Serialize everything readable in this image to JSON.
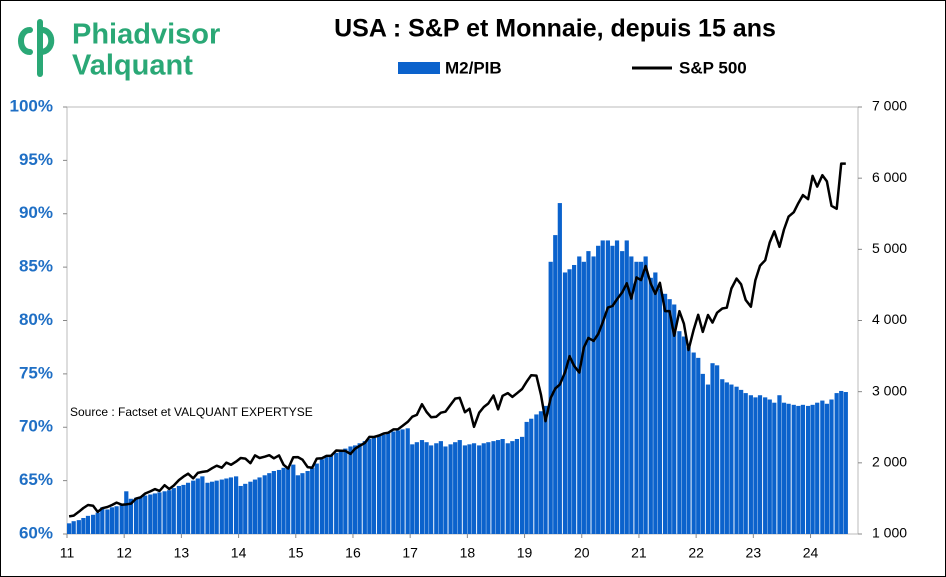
{
  "logo": {
    "line1": "Phiadvisor",
    "line2": "Valquant"
  },
  "chart_data": {
    "type": "combo",
    "title": "USA : S&P et Monnaie, depuis 15 ans",
    "annotation": "Source : Factset et VALQUANT EXPERTYSE",
    "x": [
      11.0,
      11.08,
      11.17,
      11.25,
      11.33,
      11.42,
      11.5,
      11.58,
      11.67,
      11.75,
      11.83,
      11.92,
      12.0,
      12.08,
      12.17,
      12.25,
      12.33,
      12.42,
      12.5,
      12.58,
      12.67,
      12.75,
      12.83,
      12.92,
      13.0,
      13.08,
      13.17,
      13.25,
      13.33,
      13.42,
      13.5,
      13.58,
      13.67,
      13.75,
      13.83,
      13.92,
      14.0,
      14.08,
      14.17,
      14.25,
      14.33,
      14.42,
      14.5,
      14.58,
      14.67,
      14.75,
      14.83,
      14.92,
      15.0,
      15.08,
      15.17,
      15.25,
      15.33,
      15.42,
      15.5,
      15.58,
      15.67,
      15.75,
      15.83,
      15.92,
      16.0,
      16.08,
      16.17,
      16.25,
      16.33,
      16.42,
      16.5,
      16.58,
      16.67,
      16.75,
      16.83,
      16.92,
      17.0,
      17.08,
      17.17,
      17.25,
      17.33,
      17.42,
      17.5,
      17.58,
      17.67,
      17.75,
      17.83,
      17.92,
      18.0,
      18.08,
      18.17,
      18.25,
      18.33,
      18.42,
      18.5,
      18.58,
      18.67,
      18.75,
      18.83,
      18.92,
      19.0,
      19.08,
      19.17,
      19.25,
      19.33,
      19.42,
      19.5,
      19.58,
      19.67,
      19.75,
      19.83,
      19.92,
      20.0,
      20.08,
      20.17,
      20.25,
      20.33,
      20.42,
      20.5,
      20.58,
      20.67,
      20.75,
      20.83,
      20.92,
      21.0,
      21.08,
      21.17,
      21.25,
      21.33,
      21.42,
      21.5,
      21.58,
      21.67,
      21.75,
      21.83,
      21.92,
      22.0,
      22.08,
      22.17,
      22.25,
      22.33,
      22.42,
      22.5,
      22.58,
      22.67,
      22.75,
      22.83,
      22.92,
      23.0,
      23.08,
      23.17,
      23.25,
      23.33,
      23.42,
      23.5,
      23.58,
      23.67,
      23.75,
      23.83,
      23.92,
      24.0,
      24.08,
      24.17,
      24.25,
      24.33,
      24.42,
      24.5,
      24.58
    ],
    "series": [
      {
        "name": "M2/PIB",
        "type": "bar",
        "color": "#0b62cc",
        "values": [
          61.0,
          61.2,
          61.3,
          61.5,
          61.7,
          61.8,
          62.0,
          62.5,
          62.3,
          62.5,
          62.6,
          62.8,
          64.0,
          63.3,
          63.4,
          63.5,
          63.6,
          63.7,
          63.8,
          63.9,
          64.0,
          64.1,
          64.3,
          64.5,
          64.6,
          64.8,
          65.0,
          65.2,
          65.4,
          64.8,
          64.9,
          65.0,
          65.1,
          65.2,
          65.3,
          65.4,
          64.5,
          64.7,
          64.9,
          65.1,
          65.3,
          65.5,
          65.7,
          65.9,
          66.0,
          66.2,
          66.3,
          66.5,
          65.5,
          65.7,
          65.9,
          66.2,
          66.6,
          67.0,
          67.2,
          67.4,
          67.6,
          67.8,
          68.0,
          68.2,
          68.3,
          68.5,
          68.7,
          68.9,
          69.0,
          69.2,
          69.3,
          69.5,
          69.6,
          69.7,
          69.8,
          69.9,
          68.4,
          68.6,
          68.8,
          68.6,
          68.3,
          68.5,
          68.7,
          68.2,
          68.4,
          68.6,
          68.8,
          68.3,
          68.4,
          68.5,
          68.3,
          68.5,
          68.6,
          68.7,
          68.8,
          68.9,
          68.5,
          68.7,
          68.9,
          69.1,
          70.5,
          70.8,
          71.2,
          71.5,
          72.0,
          85.5,
          88.0,
          91.0,
          84.5,
          84.8,
          85.2,
          86.0,
          85.5,
          86.5,
          86.0,
          87.0,
          87.5,
          87.5,
          87.0,
          87.5,
          86.5,
          87.5,
          86.0,
          85.5,
          85.5,
          86.0,
          84.0,
          84.5,
          83.0,
          82.5,
          82.0,
          81.5,
          79.0,
          78.5,
          77.5,
          77.0,
          76.5,
          75.0,
          74.0,
          76.0,
          75.8,
          74.5,
          74.2,
          74.0,
          73.8,
          73.5,
          73.2,
          73.0,
          72.8,
          73.0,
          72.8,
          72.6,
          72.3,
          73.0,
          72.3,
          72.2,
          72.1,
          72.0,
          72.1,
          72.0,
          72.1,
          72.3,
          72.5,
          72.2,
          72.6,
          73.2,
          73.4,
          73.3
        ]
      },
      {
        "name": "S&P 500",
        "type": "line",
        "color": "#000000",
        "axis": "y2",
        "values": [
          1247,
          1258,
          1312,
          1366,
          1408,
          1398,
          1310,
          1362,
          1379,
          1407,
          1441,
          1412,
          1416,
          1426,
          1498,
          1515,
          1569,
          1598,
          1631,
          1606,
          1686,
          1633,
          1682,
          1757,
          1806,
          1848,
          1783,
          1859,
          1872,
          1884,
          1924,
          1960,
          1931,
          2003,
          1972,
          2018,
          2068,
          2059,
          1995,
          2105,
          2068,
          2086,
          2107,
          2063,
          2104,
          1972,
          1920,
          2079,
          2080,
          2044,
          1940,
          1932,
          2060,
          2065,
          2097,
          2099,
          2174,
          2171,
          2168,
          2126,
          2199,
          2239,
          2279,
          2364,
          2363,
          2384,
          2412,
          2423,
          2470,
          2472,
          2519,
          2575,
          2648,
          2674,
          2824,
          2714,
          2641,
          2648,
          2705,
          2718,
          2816,
          2902,
          2914,
          2712,
          2760,
          2507,
          2704,
          2784,
          2834,
          2946,
          2752,
          2942,
          2980,
          2926,
          2977,
          3038,
          3141,
          3231,
          3226,
          2954,
          2585,
          2912,
          3044,
          3100,
          3271,
          3500,
          3363,
          3270,
          3622,
          3756,
          3714,
          3811,
          3973,
          4181,
          4204,
          4298,
          4395,
          4523,
          4308,
          4605,
          4567,
          4766,
          4516,
          4374,
          4530,
          4132,
          4132,
          3785,
          4130,
          3955,
          3586,
          3872,
          4080,
          3840,
          4077,
          3970,
          4109,
          4169,
          4180,
          4450,
          4589,
          4508,
          4288,
          4194,
          4568,
          4770,
          4846,
          5096,
          5254,
          5036,
          5278,
          5460,
          5522,
          5648,
          5762,
          5705,
          6032,
          5882,
          6041,
          5955,
          5612,
          5569,
          6205,
          6205
        ]
      }
    ],
    "xlim": [
      11,
      24.83
    ],
    "xticks": [
      11,
      12,
      13,
      14,
      15,
      16,
      17,
      18,
      19,
      20,
      21,
      22,
      23,
      24
    ],
    "ylim": [
      60,
      100
    ],
    "yticks": [
      {
        "value": 60,
        "label": "60%"
      },
      {
        "value": 65,
        "label": "65%"
      },
      {
        "value": 70,
        "label": "70%"
      },
      {
        "value": 75,
        "label": "75%"
      },
      {
        "value": 80,
        "label": "80%"
      },
      {
        "value": 85,
        "label": "85%"
      },
      {
        "value": 90,
        "label": "90%"
      },
      {
        "value": 95,
        "label": "95%"
      },
      {
        "value": 100,
        "label": "100%"
      }
    ],
    "y2lim": [
      1000,
      7000
    ],
    "y2ticks": [
      {
        "value": 1000,
        "label": "1 000"
      },
      {
        "value": 2000,
        "label": "2 000"
      },
      {
        "value": 3000,
        "label": "3 000"
      },
      {
        "value": 4000,
        "label": "4 000"
      },
      {
        "value": 5000,
        "label": "5 000"
      },
      {
        "value": 6000,
        "label": "6 000"
      },
      {
        "value": 7000,
        "label": "7 000"
      }
    ]
  }
}
